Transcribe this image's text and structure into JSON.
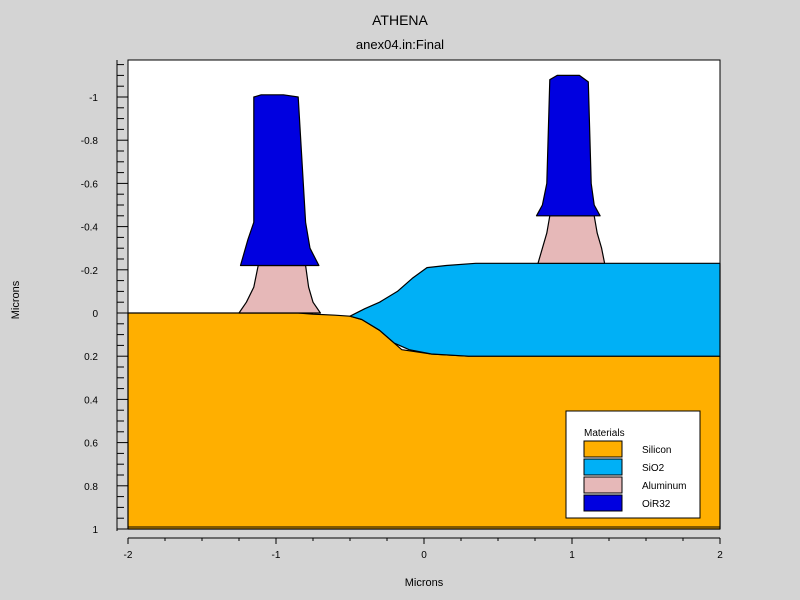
{
  "title": "ATHENA",
  "subtitle": "anex04.in:Final",
  "chart_data": {
    "type": "diagram",
    "xlabel": "Microns",
    "ylabel": "Microns",
    "xlim": [
      -2,
      2
    ],
    "ylim": [
      -1.16,
      1
    ],
    "y_inverted": true,
    "x_ticks": [
      -2,
      -1,
      0,
      1,
      2
    ],
    "y_ticks": [
      -1,
      -0.8,
      -0.6,
      -0.4,
      -0.2,
      0,
      0.2,
      0.4,
      0.6,
      0.8,
      1
    ],
    "legend": {
      "title": "Materials",
      "position": "bottom-right",
      "items": [
        {
          "label": "Silicon",
          "color": "#ffaf00"
        },
        {
          "label": "SiO2",
          "color": "#00b0f6"
        },
        {
          "label": "Aluminum",
          "color": "#e6b8b8"
        },
        {
          "label": "OiR32",
          "color": "#0000e0"
        }
      ]
    },
    "regions": [
      {
        "material": "Silicon",
        "color": "#ffaf00",
        "outline": [
          [
            -2,
            0
          ],
          [
            -0.85,
            0
          ],
          [
            -0.75,
            0.005
          ],
          [
            -0.6,
            0.01
          ],
          [
            -0.5,
            0.015
          ],
          [
            -0.42,
            0.03
          ],
          [
            -0.3,
            0.08
          ],
          [
            -0.15,
            0.17
          ],
          [
            0.05,
            0.19
          ],
          [
            0.3,
            0.2
          ],
          [
            2,
            0.2
          ],
          [
            2,
            1
          ],
          [
            -2,
            1
          ]
        ]
      },
      {
        "material": "SiO2",
        "color": "#00b0f6",
        "outline": [
          [
            -0.5,
            0.015
          ],
          [
            -0.4,
            -0.02
          ],
          [
            -0.3,
            -0.05
          ],
          [
            -0.18,
            -0.1
          ],
          [
            -0.08,
            -0.16
          ],
          [
            0.02,
            -0.21
          ],
          [
            0.15,
            -0.22
          ],
          [
            0.35,
            -0.23
          ],
          [
            2,
            -0.23
          ],
          [
            2,
            0.2
          ],
          [
            0.3,
            0.2
          ],
          [
            0.05,
            0.19
          ],
          [
            -0.1,
            0.17
          ],
          [
            -0.2,
            0.14
          ],
          [
            -0.3,
            0.08
          ],
          [
            -0.42,
            0.03
          ]
        ]
      },
      {
        "material": "Aluminum",
        "color": "#e6b8b8",
        "outline": [
          [
            -1.25,
            0
          ],
          [
            -1.2,
            -0.05
          ],
          [
            -1.15,
            -0.12
          ],
          [
            -1.12,
            -0.22
          ],
          [
            -0.8,
            -0.22
          ],
          [
            -0.78,
            -0.12
          ],
          [
            -0.75,
            -0.05
          ],
          [
            -0.7,
            0
          ]
        ]
      },
      {
        "material": "Aluminum",
        "color": "#e6b8b8",
        "outline": [
          [
            0.77,
            -0.23
          ],
          [
            0.8,
            -0.3
          ],
          [
            0.83,
            -0.37
          ],
          [
            0.85,
            -0.45
          ],
          [
            1.15,
            -0.45
          ],
          [
            1.17,
            -0.37
          ],
          [
            1.2,
            -0.3
          ],
          [
            1.22,
            -0.23
          ]
        ]
      },
      {
        "material": "OiR32",
        "color": "#0000e0",
        "outline": [
          [
            -1.24,
            -0.22
          ],
          [
            -1.19,
            -0.34
          ],
          [
            -1.15,
            -0.42
          ],
          [
            -1.15,
            -1.0
          ],
          [
            -1.1,
            -1.01
          ],
          [
            -0.95,
            -1.01
          ],
          [
            -0.85,
            -1.0
          ],
          [
            -0.8,
            -0.42
          ],
          [
            -0.77,
            -0.3
          ],
          [
            -0.71,
            -0.22
          ]
        ]
      },
      {
        "material": "OiR32",
        "color": "#0000e0",
        "outline": [
          [
            0.76,
            -0.45
          ],
          [
            0.8,
            -0.5
          ],
          [
            0.83,
            -0.6
          ],
          [
            0.85,
            -1.08
          ],
          [
            0.9,
            -1.1
          ],
          [
            1.05,
            -1.1
          ],
          [
            1.11,
            -1.07
          ],
          [
            1.13,
            -0.6
          ],
          [
            1.15,
            -0.5
          ],
          [
            1.19,
            -0.45
          ]
        ]
      }
    ]
  }
}
